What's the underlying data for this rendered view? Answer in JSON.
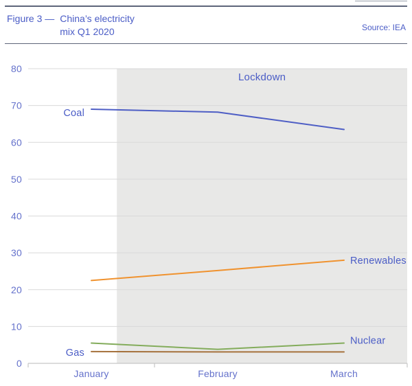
{
  "header": {
    "title_prefix": "Figure 3 —",
    "title_line1": "China’s electricity",
    "title_line2": "mix Q1 2020",
    "source": "Source: IEA"
  },
  "colors": {
    "title_blue": "#4a5cc6",
    "axis_blue": "#6471cb",
    "rule": "#5d6579",
    "gridline": "#d9d9d9",
    "axis_line": "#c6c6c6",
    "shading": "#e8e8e7",
    "coal": "#4e5ec5",
    "renewables": "#f0922e",
    "nuclear": "#83ac5b",
    "gas": "#a5713c"
  },
  "chart_data": {
    "type": "line",
    "title": "China's electricity mix Q1 2020",
    "source": "IEA",
    "categories": [
      "January",
      "February",
      "March"
    ],
    "ylabel": "",
    "ylim": [
      0,
      80
    ],
    "yticks": [
      0,
      10,
      20,
      30,
      40,
      50,
      60,
      70,
      80
    ],
    "grid": true,
    "legend_position": "inline-labels",
    "shaded_region": {
      "label": "Lockdown",
      "start_frac": 0.234,
      "end_frac": 1.0
    },
    "series": [
      {
        "name": "Coal",
        "values": [
          69,
          68.2,
          63.5
        ],
        "color": "#4e5ec5",
        "label_side": "left",
        "label_dy": 5
      },
      {
        "name": "Renewables",
        "values": [
          22.5,
          25.2,
          28
        ],
        "color": "#f0922e",
        "label_side": "right",
        "label_dy": 0
      },
      {
        "name": "Nuclear",
        "values": [
          5.5,
          3.8,
          5.5
        ],
        "color": "#83ac5b",
        "label_side": "right",
        "label_dy": -4
      },
      {
        "name": "Gas",
        "values": [
          3.2,
          3.1,
          3.1
        ],
        "color": "#a5713c",
        "label_side": "left",
        "label_dy": 1
      }
    ]
  }
}
